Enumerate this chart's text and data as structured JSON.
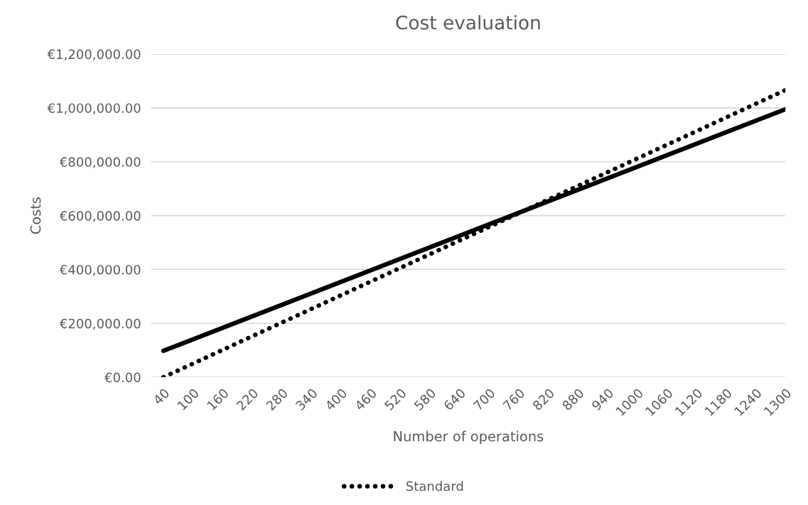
{
  "chart_data": {
    "type": "line",
    "title": "Cost evaluation",
    "xlabel": "Number of operations",
    "ylabel": "Costs",
    "xlim": [
      15,
      1300
    ],
    "xticks": [
      40,
      100,
      160,
      220,
      280,
      340,
      400,
      460,
      520,
      580,
      640,
      700,
      760,
      820,
      880,
      940,
      1000,
      1060,
      1120,
      1180,
      1240,
      1300
    ],
    "ylim": [
      0,
      1200000
    ],
    "yticks": [
      {
        "value": 0,
        "label": "€0.00"
      },
      {
        "value": 200000,
        "label": "€200,000.00"
      },
      {
        "value": 400000,
        "label": "€400,000.00"
      },
      {
        "value": 600000,
        "label": "€600,000.00"
      },
      {
        "value": 800000,
        "label": "€800,000.00"
      },
      {
        "value": 1000000,
        "label": "€1,000,000.00"
      },
      {
        "value": 1200000,
        "label": "€1,200,000.00"
      }
    ],
    "grid": "y",
    "legend": "bottom",
    "x": [
      40,
      1300
    ],
    "series": [
      {
        "color": "#000000",
        "line_style": "solid",
        "values": [
          98000,
          995000
        ]
      },
      {
        "name": "Standard",
        "color": "#000000",
        "line_style": "dotted",
        "values": [
          0,
          1066000
        ]
      }
    ]
  }
}
